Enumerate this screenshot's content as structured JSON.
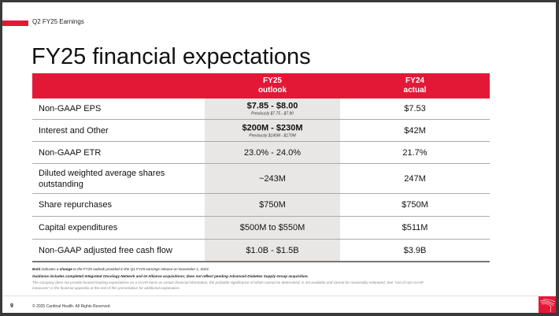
{
  "header": {
    "section": "Q2 FY25 Earnings",
    "title": "FY25 financial expectations"
  },
  "table": {
    "col1": "FY25\noutlook",
    "col1a": "FY25",
    "col1b": "outlook",
    "col2a": "FY24",
    "col2b": "actual",
    "rows": [
      {
        "label": "Non-GAAP EPS",
        "fy25": "$7.85 - $8.00",
        "prev": "Previously $7.75 - $7.90",
        "fy24": "$7.53"
      },
      {
        "label": "Interest and Other",
        "fy25": "$200M - $230M",
        "prev": "Previously $140M - $170M",
        "fy24": "$42M"
      },
      {
        "label": "Non-GAAP ETR",
        "fy25": "23.0% - 24.0%",
        "fy24": "21.7%"
      },
      {
        "label": "Diluted weighted average shares outstanding",
        "fy25": "~243M",
        "fy24": "247M"
      },
      {
        "label": "Share repurchases",
        "fy25": "$750M",
        "fy24": "$750M"
      },
      {
        "label": "Capital expenditures",
        "fy25": "$500M to $550M",
        "fy24": "$511M"
      },
      {
        "label": "Non-GAAP adjusted free cash flow",
        "fy25": "$1.0B - $1.5B",
        "fy24": "$3.9B"
      }
    ]
  },
  "notes": {
    "n1a": "Bold",
    "n1b": " indicates a ",
    "n1c": "change",
    "n1d": " to the FY25 outlook provided in the Q1 FY25 earnings release on November 1, 2024.",
    "n2": "Guidance includes completed Integrated Oncology Network and GI Alliance acquisitions; does not reflect pending Advanced Diabetes Supply Group acquisition.",
    "n3": "The company does not provide forward-looking expectations on a GAAP basis as certain financial information, the probable significance of which cannot be determined, is not available and cannot be reasonably estimated. See \"use of non-GAAP measures\" in the financial appendix at the end of this presentation for additional explanation."
  },
  "footer": {
    "page": "9",
    "copyright": "© 2025 Cardinal Health. All Rights Reserved."
  },
  "colors": {
    "accent": "#e31837",
    "highlight": "#e9e7e6"
  }
}
